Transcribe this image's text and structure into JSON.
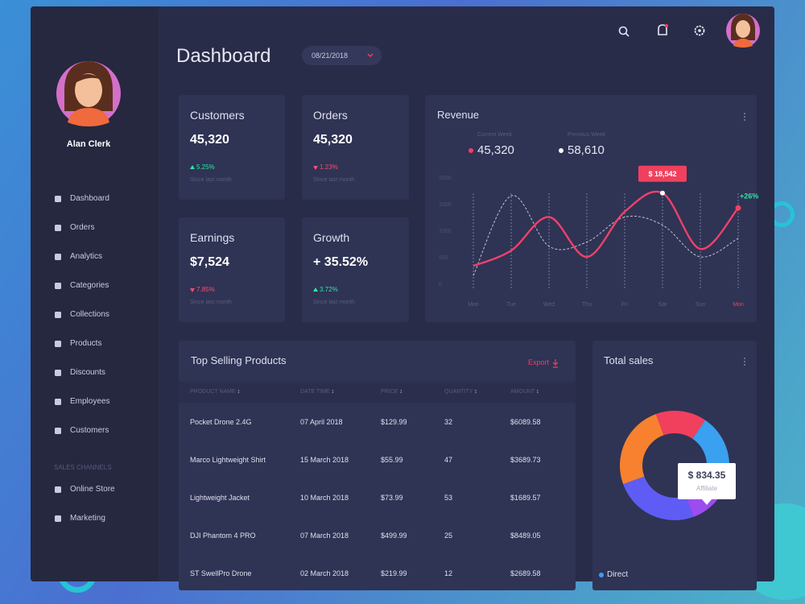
{
  "sidebar": {
    "user_name": "Alan Clerk",
    "menu": [
      "Dashboard",
      "Orders",
      "Analytics",
      "Categories",
      "Collections",
      "Products",
      "Discounts",
      "Employees",
      "Customers"
    ],
    "section": "SALES CHANNELS",
    "channels": [
      "Online Store",
      "Marketing"
    ]
  },
  "header": {
    "title": "Dashboard",
    "date": "08/21/2018"
  },
  "stats": [
    {
      "label": "Customers",
      "value": "45,320",
      "change": "5.25%",
      "trend": "up",
      "note": "Since last month"
    },
    {
      "label": "Orders",
      "value": "45,320",
      "change": "1.23%",
      "trend": "down",
      "note": "Since last month"
    },
    {
      "label": "Earnings",
      "value": "$7,524",
      "change": "7.85%",
      "trend": "down",
      "note": "Since last month"
    },
    {
      "label": "Growth",
      "value": "+ 35.52%",
      "change": "3.72%",
      "trend": "up",
      "note": "Since last month"
    }
  ],
  "revenue": {
    "type": "line",
    "title": "Revenue",
    "tooltip": "$ 18,542",
    "badge": "+26%",
    "categories": [
      "Mon",
      "Tue",
      "Wed",
      "Thu",
      "Fri",
      "Sat",
      "Sun",
      "Mon"
    ],
    "ylim": [
      0,
      2000
    ],
    "yticks": [
      0,
      500,
      1000,
      1500,
      2000
    ],
    "series": [
      {
        "name": "Current Week",
        "total": "45,320",
        "color": "#f2406a",
        "values": [
          330,
          620,
          1250,
          500,
          1350,
          1700,
          650,
          1420
        ]
      },
      {
        "name": "Previous Week",
        "total": "58,610",
        "color": "#ffffff",
        "values": [
          150,
          1650,
          700,
          780,
          1250,
          1100,
          500,
          850
        ]
      }
    ]
  },
  "products": {
    "title": "Top Selling Products",
    "export": "Export",
    "columns": [
      "PRODUCT NAME",
      "DATE TIME",
      "PRICE",
      "QUANTITY",
      "AMOUNT"
    ],
    "rows": [
      [
        "Pocket Drone 2.4G",
        "07 April 2018",
        "$129.99",
        "32",
        "$6089.58"
      ],
      [
        "Marco Lightweight Shirt",
        "15 March 2018",
        "$55.99",
        "47",
        "$3689.73"
      ],
      [
        "Lightweight Jacket",
        "10 March 2018",
        "$73.99",
        "53",
        "$1689.57"
      ],
      [
        "DJI Phantom 4 PRO",
        "07 March 2018",
        "$499.99",
        "25",
        "$8489.05"
      ],
      [
        "ST SwellPro Drone",
        "02 March 2018",
        "$219.99",
        "12",
        "$2689.58"
      ]
    ]
  },
  "total_sales": {
    "type": "pie",
    "title": "Total sales",
    "values": [
      15,
      20,
      15,
      25,
      25
    ],
    "colors": [
      "#f0405e",
      "#3aa0f0",
      "#9b4df0",
      "#5f5cf5",
      "#f7812e"
    ],
    "tooltip_value": "$ 834.35",
    "tooltip_label": "Affiliate",
    "legend": "Direct"
  }
}
